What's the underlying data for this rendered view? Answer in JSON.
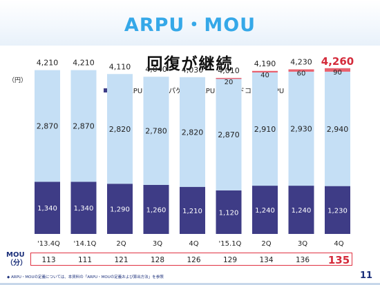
{
  "header": {
    "title": "ARPU・MOU",
    "subtitle": "回復が継続"
  },
  "unit_label": "（円）",
  "legend": {
    "voice": "音声ARPU",
    "packet": "パケットARPU",
    "hikari": "ドコモ光ARPU"
  },
  "colors": {
    "voice": "#3e3c86",
    "packet": "#c5dff5",
    "hikari": "#e8606e",
    "highlight": "#d42a3a",
    "accent": "#35a8e8"
  },
  "chart_data": {
    "type": "bar",
    "stacked": true,
    "categories": [
      "'13.4Q",
      "'14.1Q",
      "2Q",
      "3Q",
      "4Q",
      "'15.1Q",
      "2Q",
      "3Q",
      "4Q"
    ],
    "series": [
      {
        "name": "音声ARPU",
        "values": [
          1340,
          1340,
          1290,
          1260,
          1210,
          1120,
          1240,
          1240,
          1230
        ]
      },
      {
        "name": "パケットARPU",
        "values": [
          2870,
          2870,
          2820,
          2780,
          2820,
          2870,
          2910,
          2930,
          2940
        ]
      },
      {
        "name": "ドコモ光ARPU",
        "values": [
          0,
          0,
          0,
          0,
          0,
          20,
          40,
          60,
          90
        ]
      }
    ],
    "series_labels": [
      [
        "1,340",
        "1,340",
        "1,290",
        "1,260",
        "1,210",
        "1,120",
        "1,240",
        "1,240",
        "1,230"
      ],
      [
        "2,870",
        "2,870",
        "2,820",
        "2,780",
        "2,820",
        "2,870",
        "2,910",
        "2,930",
        "2,940"
      ],
      [
        "",
        "",
        "",
        "",
        "",
        "20",
        "40",
        "60",
        "90"
      ]
    ],
    "totals": [
      4210,
      4210,
      4110,
      4040,
      4030,
      4010,
      4190,
      4230,
      4260
    ],
    "total_labels": [
      "4,210",
      "4,210",
      "4,110",
      "4,040",
      "4,030",
      "4,010",
      "4,190",
      "4,230",
      "4,260"
    ],
    "highlight_index": 8,
    "ylim": [
      0,
      4700
    ],
    "ylabel": "（円）",
    "legend_position": "top"
  },
  "mou": {
    "label_line1": "MOU",
    "label_line2": "（分）",
    "values": [
      "113",
      "111",
      "121",
      "128",
      "126",
      "129",
      "134",
      "136",
      "135"
    ],
    "highlight_index": 8
  },
  "footnote": "◆ ARPU・MOUの定義については、本資料の「ARPU・MOUの定義および算出方法」を参照",
  "page_number": "11"
}
